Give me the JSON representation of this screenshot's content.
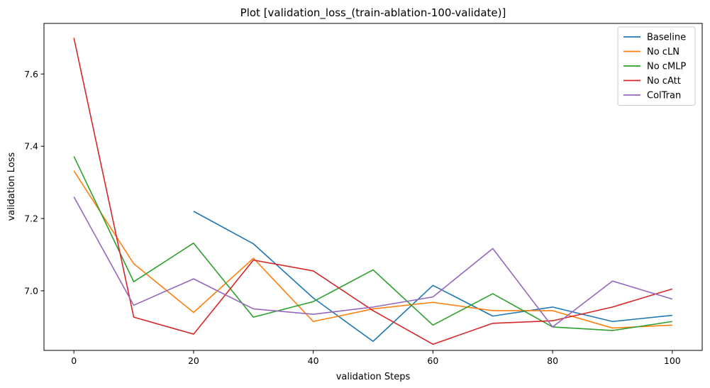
{
  "chart_data": {
    "type": "line",
    "title": "Plot [validation_loss_(train-ablation-100-validate)]",
    "xlabel": "validation Steps",
    "ylabel": "validation Loss",
    "xlim": [
      -5,
      105
    ],
    "ylim": [
      6.835,
      7.74
    ],
    "xticks": [
      0,
      20,
      40,
      60,
      80,
      100
    ],
    "yticks": [
      7.0,
      7.2,
      7.4,
      7.6
    ],
    "ytick_labels": [
      "7.0",
      "7.2",
      "7.4",
      "7.6"
    ],
    "grid": false,
    "legend": "top-right",
    "series": [
      {
        "name": "Baseline",
        "color": "#1f77b4",
        "x": [
          20,
          30,
          40,
          50,
          60,
          70,
          80,
          90,
          100
        ],
        "values": [
          7.22,
          7.13,
          6.98,
          6.86,
          7.015,
          6.93,
          6.955,
          6.915,
          6.932
        ]
      },
      {
        "name": "No cLN",
        "color": "#ff7f0e",
        "x": [
          0,
          10,
          20,
          30,
          40,
          50,
          60,
          70,
          80,
          90,
          100
        ],
        "values": [
          7.332,
          7.075,
          6.94,
          7.09,
          6.915,
          6.95,
          6.968,
          6.945,
          6.945,
          6.897,
          6.905
        ]
      },
      {
        "name": "No cMLP",
        "color": "#2ca02c",
        "x": [
          0,
          10,
          20,
          30,
          40,
          50,
          60,
          70,
          80,
          90,
          100
        ],
        "values": [
          7.372,
          7.025,
          7.132,
          6.927,
          6.97,
          7.058,
          6.905,
          6.992,
          6.9,
          6.89,
          6.915
        ]
      },
      {
        "name": "No cAtt",
        "color": "#d62728",
        "x": [
          0,
          10,
          20,
          30,
          40,
          50,
          60,
          70,
          80,
          90,
          100
        ],
        "values": [
          7.7,
          6.927,
          6.88,
          7.085,
          7.055,
          6.945,
          6.852,
          6.91,
          6.917,
          6.955,
          7.005
        ]
      },
      {
        "name": "ColTran",
        "color": "#9467bd",
        "x": [
          0,
          10,
          20,
          30,
          40,
          50,
          60,
          70,
          80,
          90,
          100
        ],
        "values": [
          7.26,
          6.96,
          7.033,
          6.95,
          6.935,
          6.955,
          6.983,
          7.117,
          6.9,
          7.027,
          6.977
        ]
      }
    ]
  }
}
